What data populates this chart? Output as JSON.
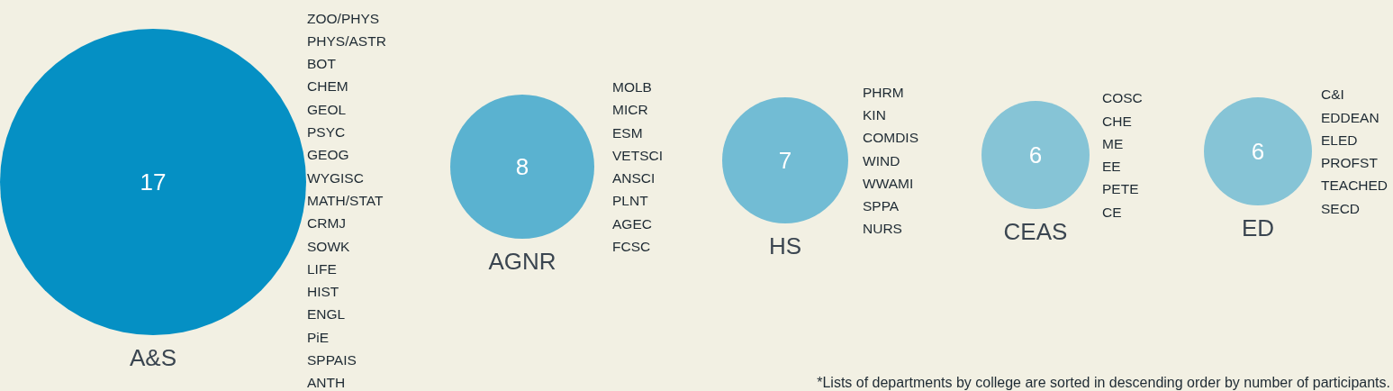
{
  "chart_data": {
    "type": "other",
    "categories": [
      "A&S",
      "AGNR",
      "HS",
      "CEAS",
      "ED"
    ],
    "values": [
      17,
      8,
      7,
      6,
      6
    ],
    "data_labels": true,
    "colors": [
      "#0590c4",
      "#5ab2d0",
      "#72bcd4",
      "#86c4d6",
      "#86c4d6"
    ],
    "annotations": [
      "ZOO/PHYS\nPHYS/ASTR\nBOT\nCHEM\nGEOL\nPSYC\nGEOG\nWYGISC\nMATH/STAT\nCRMJ\nSOWK\nLIFE\nHIST\nENGL\nPiE\nSPPAIS\nANTH",
      "MOLB\nMICR\nESM\nVETSCI\nANSCI\nPLNT\nAGEC\nFCSC",
      "PHRM\nKIN\nCOMDIS\nWIND\nWWAMI\nSPPA\nNURS",
      "COSC\nCHE\nME\nEE\nPETE\nCE",
      "C&I\nEDDEAN\nELED\nPROFST\nTEACHED\nSECD",
      "*Lists of departments by college are sorted in descending order by number of participants."
    ]
  }
}
